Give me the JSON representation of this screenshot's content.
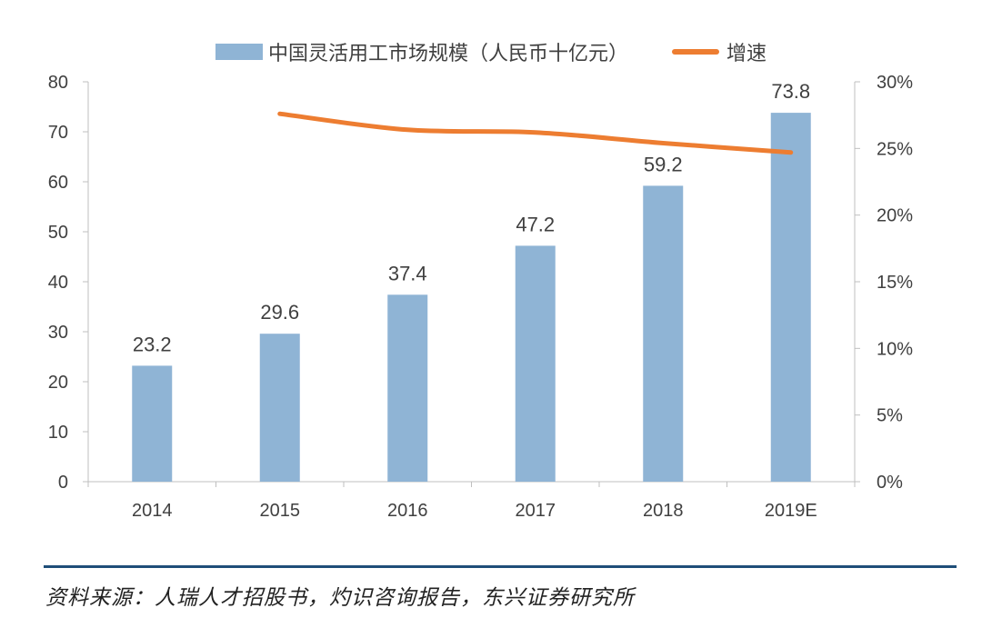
{
  "chart_data": {
    "type": "bar",
    "categories": [
      "2014",
      "2015",
      "2016",
      "2017",
      "2018",
      "2019E"
    ],
    "series": [
      {
        "name": "中国灵活用工市场规模（人民币十亿元）",
        "kind": "bar",
        "axis": "left",
        "color": "#8fb4d5",
        "values": [
          23.2,
          29.6,
          37.4,
          47.2,
          59.2,
          73.8
        ],
        "labels": [
          "23.2",
          "29.6",
          "37.4",
          "47.2",
          "59.2",
          "73.8"
        ]
      },
      {
        "name": "增速",
        "kind": "line",
        "axis": "right",
        "color": "#ed7d31",
        "values": [
          null,
          0.276,
          0.264,
          0.262,
          0.254,
          0.247
        ]
      }
    ],
    "yleft": {
      "min": 0,
      "max": 80,
      "ticks": [
        "0",
        "10",
        "20",
        "30",
        "40",
        "50",
        "60",
        "70",
        "80"
      ]
    },
    "yright": {
      "min": 0,
      "max": 0.3,
      "ticks": [
        "0%",
        "5%",
        "10%",
        "15%",
        "20%",
        "25%",
        "30%"
      ]
    },
    "grid": false,
    "legend": "top-center"
  },
  "source": {
    "text": "资料来源：人瑞人才招股书，灼识咨询报告，东兴证券研究所",
    "rule_color": "#1f4e79"
  }
}
